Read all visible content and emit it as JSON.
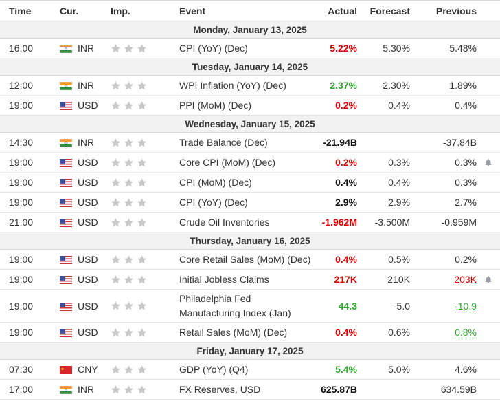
{
  "headers": {
    "time": "Time",
    "currency": "Cur.",
    "importance": "Imp.",
    "event": "Event",
    "actual": "Actual",
    "forecast": "Forecast",
    "previous": "Previous"
  },
  "colors": {
    "red": "#dd0000",
    "green": "#2ca92c",
    "star": "#c8c8c8",
    "day_bg": "#f2f2f2"
  },
  "days": [
    {
      "label": "Monday, January 13, 2025",
      "events": [
        {
          "time": "16:00",
          "cur": "INR",
          "flag": "india",
          "event": "CPI (YoY) (Dec)",
          "actual": "5.22%",
          "actual_color": "red",
          "forecast": "5.30%",
          "previous": "5.48%",
          "prev_style": "",
          "bell": false
        }
      ]
    },
    {
      "label": "Tuesday, January 14, 2025",
      "events": [
        {
          "time": "12:00",
          "cur": "INR",
          "flag": "india",
          "event": "WPI Inflation (YoY) (Dec)",
          "actual": "2.37%",
          "actual_color": "green",
          "forecast": "2.30%",
          "previous": "1.89%",
          "prev_style": "",
          "bell": false
        },
        {
          "time": "19:00",
          "cur": "USD",
          "flag": "usa",
          "event": "PPI (MoM) (Dec)",
          "actual": "0.2%",
          "actual_color": "red",
          "forecast": "0.4%",
          "previous": "0.4%",
          "prev_style": "",
          "bell": false
        }
      ]
    },
    {
      "label": "Wednesday, January 15, 2025",
      "events": [
        {
          "time": "14:30",
          "cur": "INR",
          "flag": "india",
          "event": "Trade Balance (Dec)",
          "actual": "-21.94B",
          "actual_color": "black",
          "forecast": "",
          "previous": "-37.84B",
          "prev_style": "",
          "bell": false
        },
        {
          "time": "19:00",
          "cur": "USD",
          "flag": "usa",
          "event": "Core CPI (MoM) (Dec)",
          "actual": "0.2%",
          "actual_color": "red",
          "forecast": "0.3%",
          "previous": "0.3%",
          "prev_style": "",
          "bell": true
        },
        {
          "time": "19:00",
          "cur": "USD",
          "flag": "usa",
          "event": "CPI (MoM) (Dec)",
          "actual": "0.4%",
          "actual_color": "black",
          "forecast": "0.4%",
          "previous": "0.3%",
          "prev_style": "",
          "bell": false
        },
        {
          "time": "19:00",
          "cur": "USD",
          "flag": "usa",
          "event": "CPI (YoY) (Dec)",
          "actual": "2.9%",
          "actual_color": "black",
          "forecast": "2.9%",
          "previous": "2.7%",
          "prev_style": "",
          "bell": false
        },
        {
          "time": "21:00",
          "cur": "USD",
          "flag": "usa",
          "event": "Crude Oil Inventories",
          "actual": "-1.962M",
          "actual_color": "red",
          "forecast": "-3.500M",
          "previous": "-0.959M",
          "prev_style": "",
          "bell": false
        }
      ]
    },
    {
      "label": "Thursday, January 16, 2025",
      "events": [
        {
          "time": "19:00",
          "cur": "USD",
          "flag": "usa",
          "event": "Core Retail Sales (MoM) (Dec)",
          "actual": "0.4%",
          "actual_color": "red",
          "forecast": "0.5%",
          "previous": "0.2%",
          "prev_style": "",
          "bell": false
        },
        {
          "time": "19:00",
          "cur": "USD",
          "flag": "usa",
          "event": "Initial Jobless Claims",
          "actual": "217K",
          "actual_color": "red",
          "forecast": "210K",
          "previous": "203K",
          "prev_style": "red",
          "bell": true
        },
        {
          "time": "19:00",
          "cur": "USD",
          "flag": "usa",
          "event": "Philadelphia Fed Manufacturing Index (Jan)",
          "actual": "44.3",
          "actual_color": "green",
          "forecast": "-5.0",
          "previous": "-10.9",
          "prev_style": "green",
          "bell": false,
          "tall": true
        },
        {
          "time": "19:00",
          "cur": "USD",
          "flag": "usa",
          "event": "Retail Sales (MoM) (Dec)",
          "actual": "0.4%",
          "actual_color": "red",
          "forecast": "0.6%",
          "previous": "0.8%",
          "prev_style": "green",
          "bell": false
        }
      ]
    },
    {
      "label": "Friday, January 17, 2025",
      "events": [
        {
          "time": "07:30",
          "cur": "CNY",
          "flag": "china",
          "event": "GDP (YoY) (Q4)",
          "actual": "5.4%",
          "actual_color": "green",
          "forecast": "5.0%",
          "previous": "4.6%",
          "prev_style": "",
          "bell": false
        },
        {
          "time": "17:00",
          "cur": "INR",
          "flag": "india",
          "event": "FX Reserves, USD",
          "actual": "625.87B",
          "actual_color": "black",
          "forecast": "",
          "previous": "634.59B",
          "prev_style": "",
          "bell": false
        }
      ]
    }
  ]
}
